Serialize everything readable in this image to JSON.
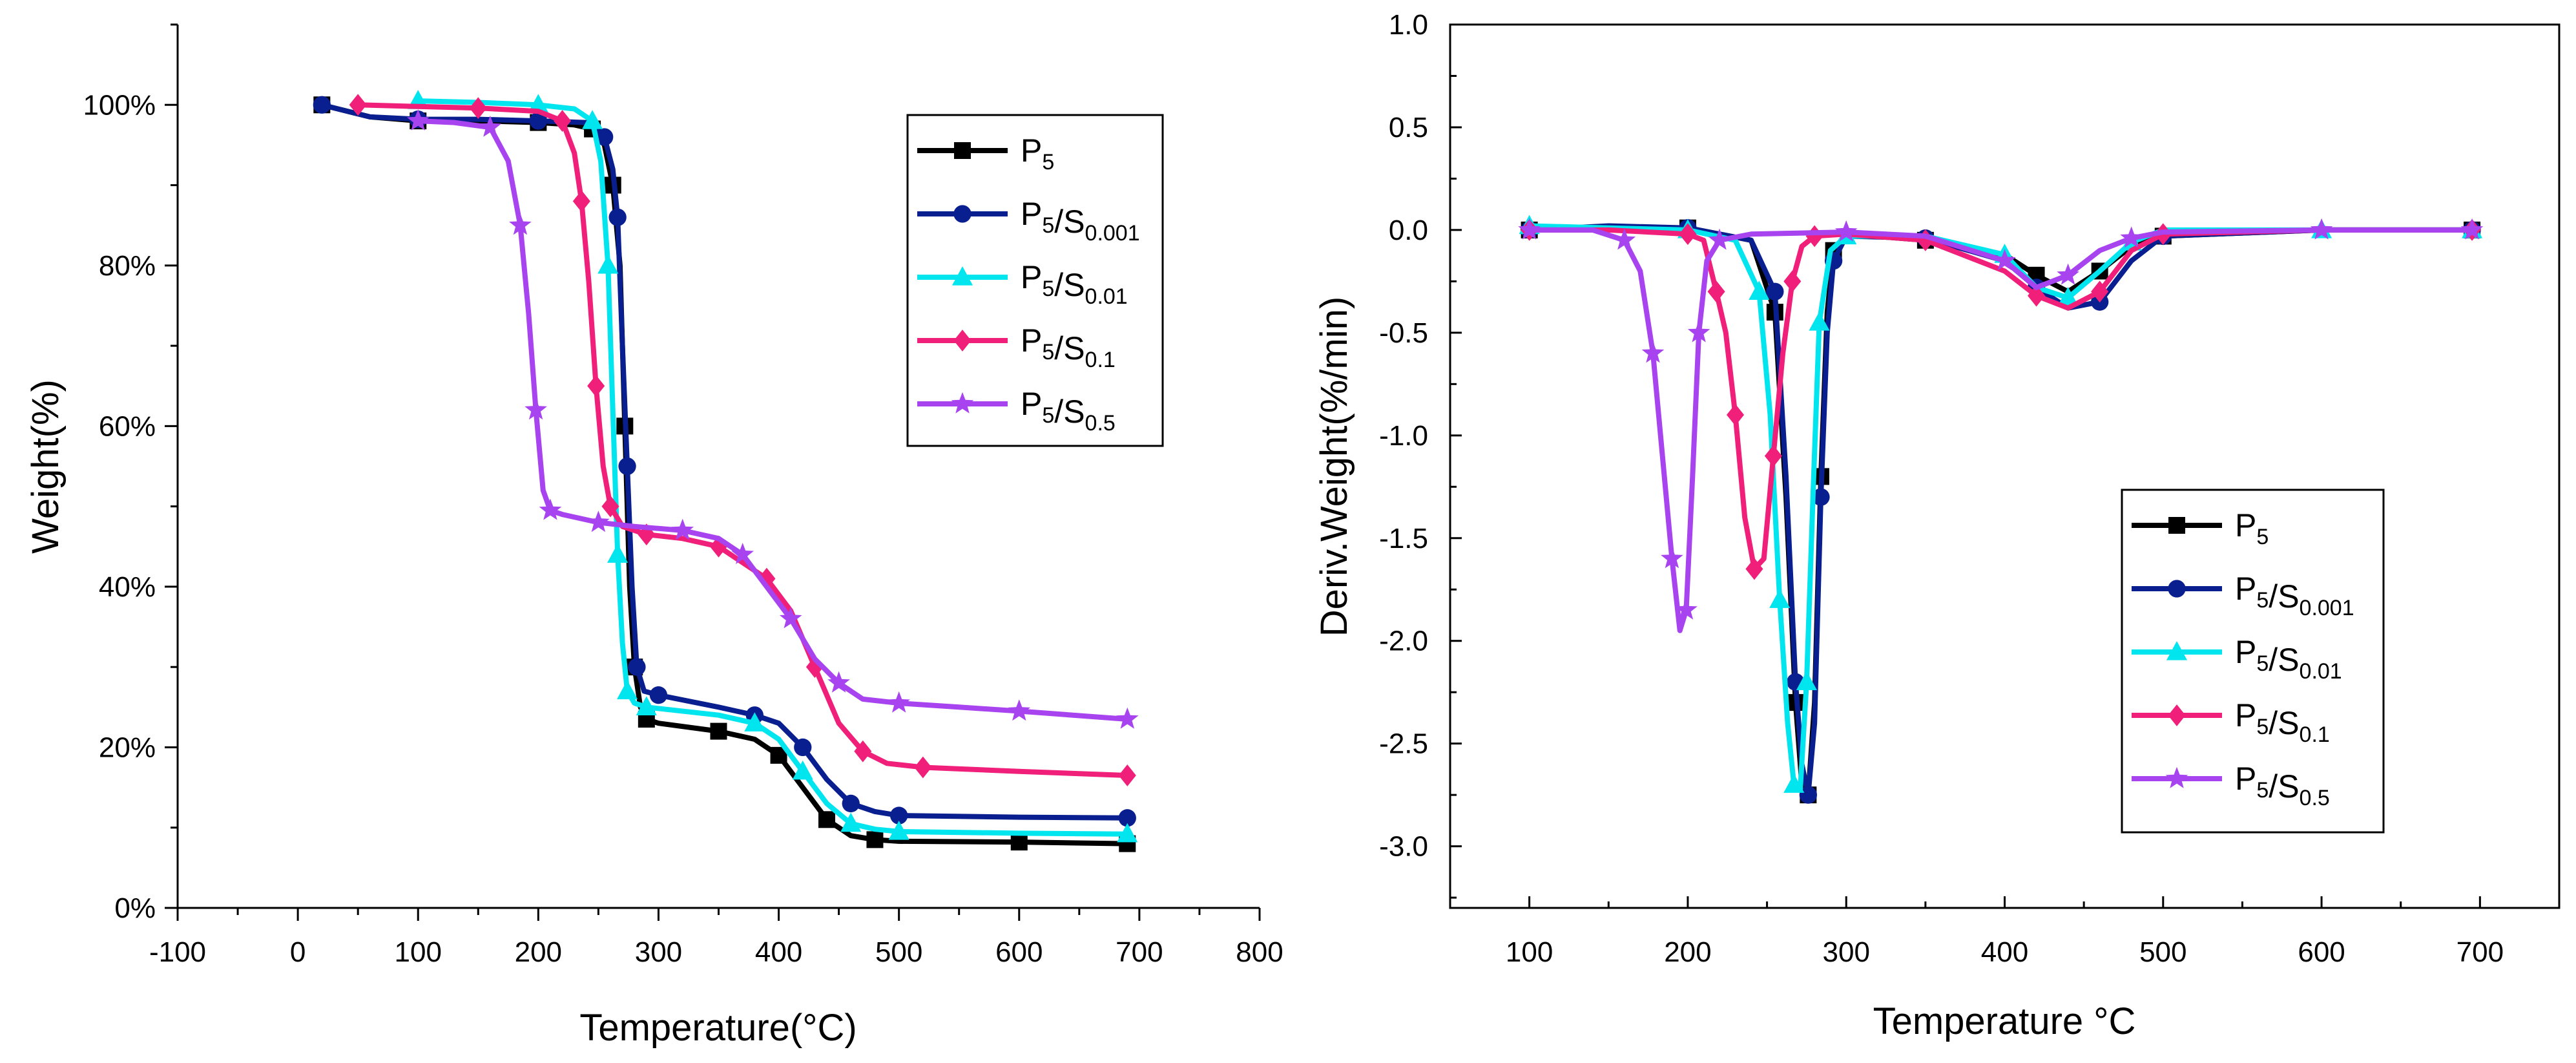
{
  "chart_data": [
    {
      "type": "line",
      "panel": "left",
      "title": "",
      "xlabel": "Temperature(°C)",
      "ylabel": "Weight(%)",
      "xlim": [
        -100,
        800
      ],
      "ylim": [
        0,
        110
      ],
      "x_ticks": [
        -100,
        0,
        100,
        200,
        300,
        400,
        500,
        600,
        700,
        800
      ],
      "x_tick_labels": [
        "-100",
        "0",
        "100",
        "200",
        "300",
        "400",
        "500",
        "600",
        "700",
        "800"
      ],
      "y_ticks": [
        0,
        20,
        40,
        60,
        80,
        100
      ],
      "y_tick_labels": [
        "0%",
        "20%",
        "40%",
        "60%",
        "80%",
        "100%"
      ],
      "legend_position": "top-right",
      "series": [
        {
          "name": "P5",
          "base": "P",
          "sub1": "5",
          "sep": "",
          "base2": "",
          "sub2": "",
          "color": "#000000",
          "marker": "square",
          "x": [
            20,
            60,
            100,
            150,
            200,
            230,
            245,
            255,
            262,
            268,
            272,
            276,
            280,
            285,
            290,
            300,
            350,
            380,
            400,
            420,
            440,
            460,
            480,
            500,
            600,
            690
          ],
          "y": [
            100,
            98.5,
            98,
            98,
            97.8,
            97.5,
            97,
            95,
            90,
            80,
            60,
            40,
            30,
            25,
            23.5,
            23,
            22,
            21,
            19,
            15,
            11,
            9,
            8.5,
            8.3,
            8.2,
            8
          ]
        },
        {
          "name": "P5/S0.001",
          "base": "P",
          "sub1": "5",
          "sep": "/",
          "base2": "S",
          "sub2": "0.001",
          "color": "#0a1f8f",
          "marker": "circle",
          "x": [
            20,
            60,
            100,
            150,
            200,
            240,
            255,
            262,
            266,
            270,
            274,
            278,
            282,
            288,
            300,
            350,
            380,
            400,
            420,
            440,
            460,
            480,
            500,
            600,
            690
          ],
          "y": [
            100,
            98.5,
            98.2,
            98.2,
            98,
            97.8,
            96,
            92,
            86,
            70,
            55,
            40,
            30,
            27,
            26.5,
            25,
            24,
            23,
            20,
            16,
            13,
            12,
            11.5,
            11.3,
            11.2
          ]
        },
        {
          "name": "P5/S0.01",
          "base": "P",
          "sub1": "5",
          "sep": "/",
          "base2": "S",
          "sub2": "0.01",
          "color": "#00e5ee",
          "marker": "triangle",
          "x": [
            100,
            150,
            200,
            230,
            245,
            252,
            258,
            262,
            266,
            270,
            274,
            280,
            290,
            350,
            380,
            400,
            420,
            440,
            460,
            480,
            500,
            600,
            690
          ],
          "y": [
            100.5,
            100.3,
            100,
            99.5,
            98,
            93,
            80,
            62,
            44,
            33,
            27,
            25.5,
            25,
            24,
            23,
            21,
            17,
            13,
            10.5,
            9.8,
            9.5,
            9.3,
            9.2
          ]
        },
        {
          "name": "P5/S0.1",
          "base": "P",
          "sub1": "5",
          "sep": "/",
          "base2": "S",
          "sub2": "0.1",
          "color": "#f0207a",
          "marker": "diamond",
          "x": [
            50,
            100,
            150,
            200,
            220,
            230,
            236,
            242,
            248,
            254,
            260,
            270,
            290,
            320,
            350,
            370,
            390,
            410,
            430,
            450,
            470,
            490,
            520,
            600,
            690
          ],
          "y": [
            100,
            99.8,
            99.6,
            99.2,
            98,
            94,
            88,
            78,
            65,
            55,
            50,
            47.5,
            46.5,
            46,
            45,
            43,
            41,
            37,
            30,
            23,
            19.5,
            18,
            17.5,
            17,
            16.5
          ]
        },
        {
          "name": "P5/S0.5",
          "base": "P",
          "sub1": "5",
          "sep": "/",
          "base2": "S",
          "sub2": "0.5",
          "color": "#a843f0",
          "marker": "star",
          "x": [
            100,
            130,
            160,
            175,
            185,
            192,
            198,
            204,
            210,
            220,
            250,
            280,
            320,
            350,
            370,
            390,
            410,
            430,
            450,
            470,
            500,
            550,
            600,
            690
          ],
          "y": [
            98,
            97.8,
            97.2,
            93,
            85,
            74,
            62,
            52,
            49.5,
            49,
            48,
            47.5,
            47,
            46,
            44,
            40,
            36,
            31,
            28,
            26,
            25.5,
            25,
            24.5,
            23.5
          ]
        }
      ]
    },
    {
      "type": "line",
      "panel": "right",
      "title": "",
      "xlabel": "Temperature °C",
      "ylabel": "Deriv.Weight(%/min)",
      "xlim": [
        50,
        750
      ],
      "ylim": [
        -3.3,
        1.0
      ],
      "x_ticks": [
        100,
        200,
        300,
        400,
        500,
        600,
        700
      ],
      "x_tick_labels": [
        "100",
        "200",
        "300",
        "400",
        "500",
        "600",
        "700"
      ],
      "y_ticks": [
        1.0,
        0.5,
        0.0,
        -0.5,
        -1.0,
        -1.5,
        -2.0,
        -2.5,
        -3.0
      ],
      "y_tick_labels": [
        "1.0",
        "0.5",
        "0.0",
        "-0.5",
        "-1.0",
        "-1.5",
        "-2.0",
        "-2.5",
        "-3.0"
      ],
      "legend_position": "bottom-right",
      "series": [
        {
          "name": "P5",
          "base": "P",
          "sub1": "5",
          "sep": "",
          "base2": "",
          "sub2": "",
          "color": "#000000",
          "marker": "square",
          "x": [
            100,
            150,
            200,
            240,
            255,
            262,
            268,
            272,
            276,
            280,
            284,
            288,
            292,
            300,
            350,
            400,
            420,
            440,
            460,
            480,
            500,
            600,
            695
          ],
          "y": [
            0,
            0,
            0.01,
            -0.05,
            -0.4,
            -1.3,
            -2.3,
            -2.7,
            -2.75,
            -2.3,
            -1.2,
            -0.4,
            -0.1,
            -0.02,
            -0.05,
            -0.12,
            -0.22,
            -0.3,
            -0.2,
            -0.08,
            -0.03,
            0,
            0
          ]
        },
        {
          "name": "P5/S0.001",
          "base": "P",
          "sub1": "5",
          "sep": "/",
          "base2": "S",
          "sub2": "0.001",
          "color": "#0a1f8f",
          "marker": "circle",
          "x": [
            100,
            150,
            200,
            240,
            255,
            262,
            268,
            272,
            276,
            280,
            284,
            288,
            292,
            300,
            350,
            400,
            420,
            440,
            460,
            480,
            500,
            600,
            695
          ],
          "y": [
            0,
            0.02,
            0.01,
            -0.05,
            -0.3,
            -1.2,
            -2.2,
            -2.6,
            -2.75,
            -2.4,
            -1.3,
            -0.5,
            -0.15,
            -0.03,
            -0.04,
            -0.15,
            -0.28,
            -0.38,
            -0.35,
            -0.15,
            -0.03,
            0,
            0
          ]
        },
        {
          "name": "P5/S0.01",
          "base": "P",
          "sub1": "5",
          "sep": "/",
          "base2": "S",
          "sub2": "0.01",
          "color": "#00e5ee",
          "marker": "triangle",
          "x": [
            100,
            150,
            200,
            230,
            245,
            252,
            258,
            263,
            267,
            271,
            275,
            279,
            283,
            290,
            300,
            350,
            400,
            420,
            440,
            460,
            480,
            500,
            600,
            695
          ],
          "y": [
            0.02,
            0.01,
            0,
            -0.05,
            -0.3,
            -0.9,
            -1.8,
            -2.4,
            -2.7,
            -2.72,
            -2.2,
            -1.3,
            -0.45,
            -0.1,
            -0.03,
            -0.03,
            -0.12,
            -0.28,
            -0.33,
            -0.2,
            -0.06,
            0,
            0,
            0
          ]
        },
        {
          "name": "P5/S0.1",
          "base": "P",
          "sub1": "5",
          "sep": "/",
          "base2": "S",
          "sub2": "0.1",
          "color": "#f0207a",
          "marker": "diamond",
          "x": [
            100,
            150,
            200,
            210,
            218,
            224,
            230,
            236,
            242,
            248,
            254,
            260,
            266,
            272,
            280,
            300,
            350,
            400,
            420,
            440,
            460,
            480,
            500,
            600,
            695
          ],
          "y": [
            0,
            0,
            -0.02,
            -0.05,
            -0.3,
            -0.5,
            -0.9,
            -1.4,
            -1.65,
            -1.6,
            -1.1,
            -0.6,
            -0.25,
            -0.08,
            -0.03,
            -0.02,
            -0.05,
            -0.2,
            -0.32,
            -0.38,
            -0.3,
            -0.1,
            -0.02,
            0,
            0
          ]
        },
        {
          "name": "P5/S0.5",
          "base": "P",
          "sub1": "5",
          "sep": "/",
          "base2": "S",
          "sub2": "0.5",
          "color": "#a843f0",
          "marker": "star",
          "x": [
            100,
            140,
            160,
            170,
            178,
            184,
            190,
            195,
            199,
            203,
            207,
            212,
            220,
            240,
            300,
            350,
            400,
            420,
            440,
            460,
            480,
            500,
            600,
            695
          ],
          "y": [
            0,
            0,
            -0.05,
            -0.2,
            -0.6,
            -1.1,
            -1.6,
            -1.95,
            -1.85,
            -1.2,
            -0.5,
            -0.15,
            -0.05,
            -0.02,
            -0.01,
            -0.03,
            -0.15,
            -0.28,
            -0.22,
            -0.1,
            -0.04,
            -0.01,
            0,
            0
          ]
        }
      ]
    }
  ]
}
